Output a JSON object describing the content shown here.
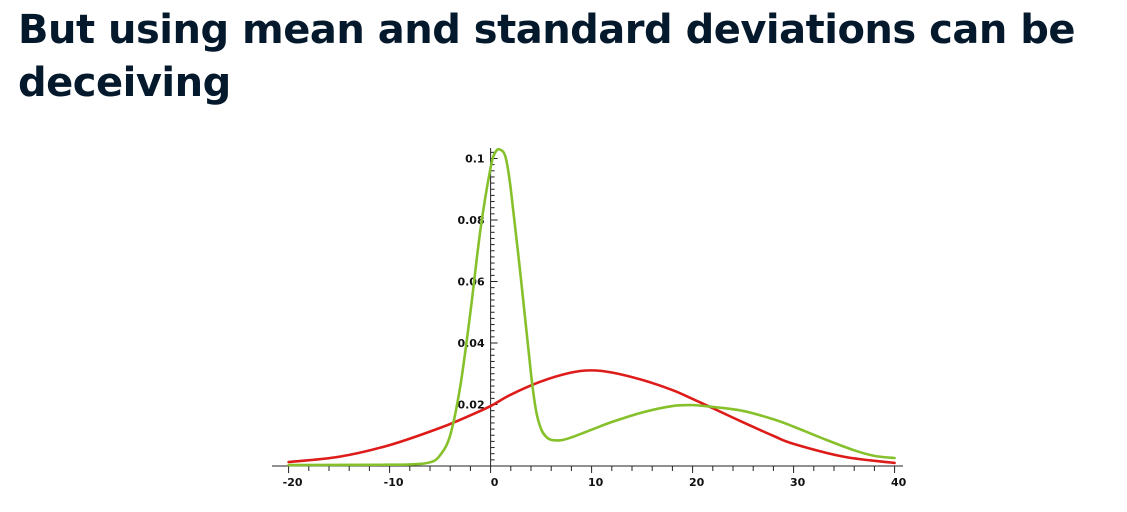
{
  "slide": {
    "title": "But using mean and standard deviations can be deceiving"
  },
  "chart_data": {
    "type": "line",
    "title": "",
    "xlabel": "",
    "ylabel": "",
    "xlim": [
      -20,
      40
    ],
    "ylim": [
      0,
      0.102
    ],
    "grid": false,
    "legend": "none",
    "x_ticks": [
      {
        "value": -20,
        "label": "-20"
      },
      {
        "value": -10,
        "label": "-10"
      },
      {
        "value": 0,
        "label": "0"
      },
      {
        "value": 10,
        "label": "10"
      },
      {
        "value": 20,
        "label": "20"
      },
      {
        "value": 30,
        "label": "30"
      },
      {
        "value": 40,
        "label": "40"
      }
    ],
    "y_ticks": [
      {
        "value": 0.02,
        "label": "0.02"
      },
      {
        "value": 0.04,
        "label": "0.04"
      },
      {
        "value": 0.06,
        "label": "0.06"
      },
      {
        "value": 0.08,
        "label": "0.08"
      },
      {
        "value": 0.1,
        "label": "0.1"
      }
    ],
    "series": [
      {
        "color": "#dd1c1a",
        "x": [
          -20,
          -15,
          -10,
          -5,
          -2,
          0,
          2,
          5,
          8,
          10,
          12,
          15,
          18,
          20,
          22,
          25,
          28,
          30,
          35,
          40
        ],
        "y": [
          0.0013,
          0.003,
          0.0068,
          0.0124,
          0.0165,
          0.0195,
          0.0232,
          0.0275,
          0.0304,
          0.0311,
          0.0304,
          0.028,
          0.0247,
          0.0218,
          0.0188,
          0.0142,
          0.0098,
          0.0072,
          0.003,
          0.001
        ]
      },
      {
        "color": "#86c12c",
        "x": [
          -20,
          -12,
          -8,
          -6,
          -5,
          -4,
          -3,
          -2,
          -1,
          0,
          0.5,
          1,
          1.5,
          2,
          3,
          4,
          4.5,
          5,
          5.5,
          6,
          7,
          8,
          10,
          12,
          15,
          18,
          20,
          22,
          25,
          28,
          30,
          33,
          36,
          38,
          40
        ],
        "y": [
          0.0003,
          0.0004,
          0.0005,
          0.0012,
          0.0035,
          0.01,
          0.026,
          0.05,
          0.077,
          0.097,
          0.1022,
          0.1028,
          0.1002,
          0.09,
          0.061,
          0.03,
          0.018,
          0.012,
          0.0095,
          0.0085,
          0.0084,
          0.0093,
          0.0118,
          0.0143,
          0.0174,
          0.0195,
          0.0198,
          0.0192,
          0.0179,
          0.0152,
          0.0128,
          0.0088,
          0.0051,
          0.0033,
          0.0026
        ]
      }
    ]
  }
}
